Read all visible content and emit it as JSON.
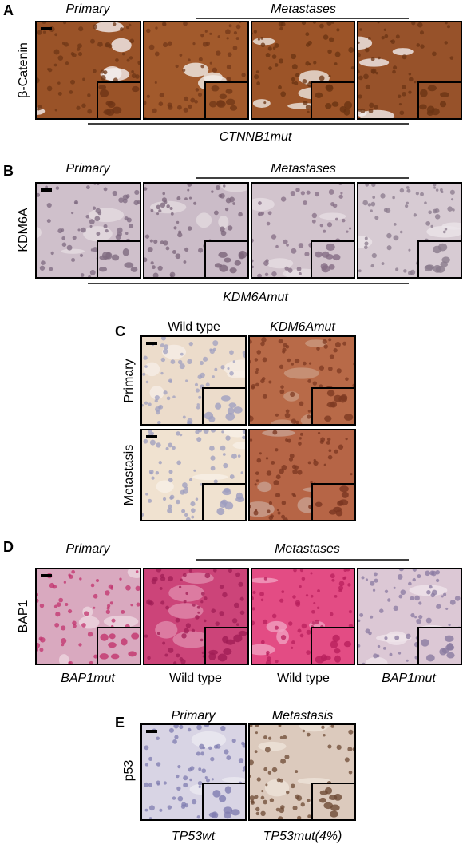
{
  "panels": [
    {
      "label": "A",
      "stain": "β-Catenin",
      "column_headers": [
        "Primary",
        "Metastases"
      ],
      "footer": "CTNNB1mut"
    },
    {
      "label": "B",
      "stain": "KDM6A",
      "column_headers": [
        "Primary",
        "Metastases"
      ],
      "footer": "KDM6Amut"
    },
    {
      "label": "C",
      "column_headers": [
        "Wild type",
        "KDM6Amut"
      ],
      "row_labels": [
        "Primary",
        "Metastasis"
      ]
    },
    {
      "label": "D",
      "stain": "BAP1",
      "column_headers": [
        "Primary",
        "Metastases"
      ],
      "footers": [
        "BAP1mut",
        "Wild type",
        "Wild type",
        "BAP1mut"
      ]
    },
    {
      "label": "E",
      "stain": "p53",
      "column_headers": [
        "Primary",
        "Metastasis"
      ],
      "footers": [
        "TP53wt",
        "TP53mut(4%)"
      ]
    }
  ]
}
